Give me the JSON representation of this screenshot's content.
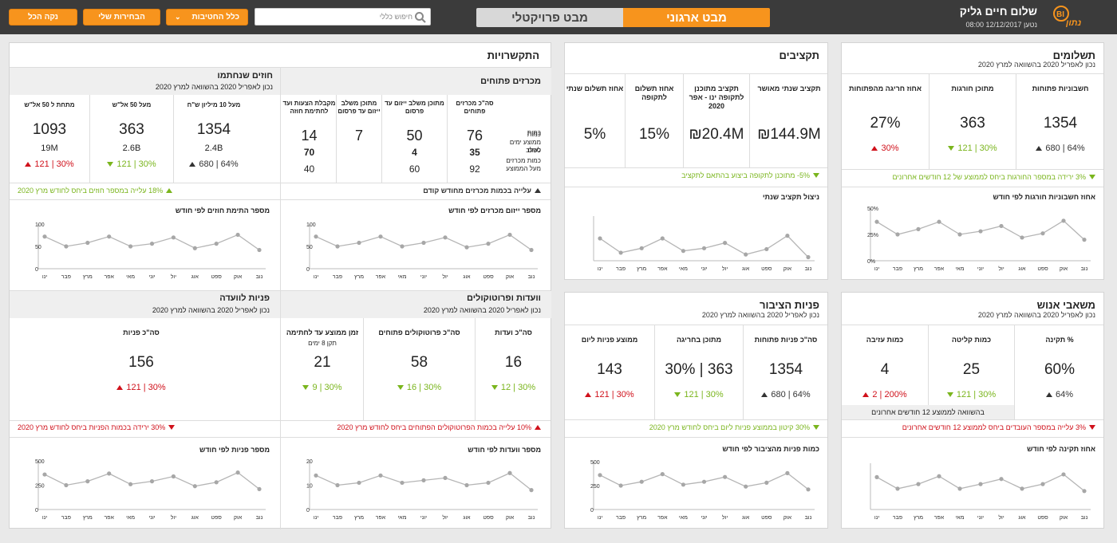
{
  "header": {
    "clear_all": "נקה הכל",
    "my_selections": "הבחירות שלי",
    "all_branches": "כלל החטיבות",
    "search_placeholder": "חיפוש כללי",
    "tab_project": "מבט פרויקטלי",
    "tab_org": "מבט ארגוני",
    "greeting": "שלום חיים גליק",
    "updated": "נטען 12/12/2017 08:00",
    "logo_text": "BI נתון"
  },
  "colors": {
    "accent": "#f7941d",
    "green": "#7ab51d",
    "red": "#d0111b",
    "topbar": "#3b3b3b"
  },
  "month_labels": [
    "ינו",
    "פבר",
    "מרץ",
    "אפר",
    "מאי",
    "יוני",
    "יול",
    "אוג",
    "ספט",
    "אוק",
    "נוב"
  ],
  "payments": {
    "title": "תשלומים",
    "subtitle": "נכון לאפריל 2020 בהשוואה למרץ 2020",
    "kpis": [
      {
        "label": "חשבוניות פתוחות",
        "value": "1354",
        "trend": "680 | 64%",
        "dir": "up",
        "color": "grey"
      },
      {
        "label": "מתוכן חורגות",
        "value": "363",
        "trend": "121 | 30%",
        "dir": "down",
        "color": "green"
      },
      {
        "label": "אחוז חריגה מהפתוחות",
        "value": "27%",
        "trend": "30%",
        "dir": "up",
        "color": "red"
      }
    ],
    "alert": "3% ירידה במספר החורגות ביחס לממוצע של 12 חודשים אחרונים",
    "chart_title": "אחוז חשבוניות חורגות לפי חודש",
    "yticks": [
      "50%",
      "25%",
      "0%"
    ]
  },
  "budgets": {
    "title": "תקציבים",
    "kpis": [
      {
        "label": "תקציב שנתי מאושר",
        "value": "₪144.9M"
      },
      {
        "label": "תקציב מתוכנן לתקופה ינו - אפר 2020",
        "value": "₪20.4M"
      },
      {
        "label": "אחוז תשלום לתקופה",
        "value": "15%"
      },
      {
        "label": "אחוז תשלום שנתי",
        "value": "5%"
      }
    ],
    "alert": "5%- מתוכנן לתקופה ביצוע בהתאם לתקציב",
    "chart_title": "ניצול תקציב שנתי"
  },
  "links": {
    "title": "התקשרויות",
    "tenders": {
      "title": "מכרזים פתוחים",
      "cols": [
        "סה\"כ מכרזים פתוחים",
        "מתוכן משלב ייזום עד פרסום",
        "מתוכן משלב ייזום עד פרסום",
        "מקבלת הצעות ועד לחתימת חוזה"
      ],
      "rowlabels": [
        "כמות",
        "ממוצע ימים לשלב",
        "כמות מכרזים מעל הממוצע"
      ],
      "rows": [
        [
          "76",
          "50",
          "7",
          "14"
        ],
        [
          "35",
          "4",
          "",
          "70"
        ],
        [
          "92",
          "60",
          "",
          "40"
        ]
      ],
      "alert": "עלייה בכמות מכרזים מחודש קודם",
      "chart_title": "מספר ייזום מכרזים לפי חודש",
      "yticks": [
        "100",
        "50",
        "0"
      ]
    },
    "contracts": {
      "title": "חוזים שנחתמו",
      "subtitle": "נכון לאפריל 2020 בהשוואה למרץ 2020",
      "rowlabels": [
        "כמות",
        "סכום"
      ],
      "cols": [
        {
          "label": "מעל 10 מיליון ש\"ח",
          "count": "1354",
          "sum": "2.4B",
          "trend": "680 | 64%",
          "dir": "up",
          "color": "grey"
        },
        {
          "label": "מעל 50 אל\"ש",
          "count": "363",
          "sum": "2.6B",
          "trend": "121 | 30%",
          "dir": "down",
          "color": "green"
        },
        {
          "label": "מתחת ל 50 אל\"ש",
          "count": "1093",
          "sum": "19M",
          "trend": "121 | 30%",
          "dir": "up",
          "color": "red"
        }
      ],
      "alert": "18% עלייה במספר חוזים ביחס לחודש מרץ 2020",
      "chart_title": "מספר התימת חוזים לפי חודש",
      "yticks": [
        "100",
        "50",
        "0"
      ]
    }
  },
  "hr": {
    "title": "משאבי אנוש",
    "subtitle": "נכון לאפריל 2020 בהשוואה למרץ 2020",
    "kpis": [
      {
        "label": "% תקינה",
        "value": "60%",
        "trend": "64%",
        "dir": "up",
        "color": "grey"
      },
      {
        "label": "כמות קליטה",
        "value": "25",
        "trend": "121 | 30%",
        "dir": "down",
        "color": "green"
      },
      {
        "label": "כמות עזיבה",
        "value": "4",
        "trend": "2 | 200%",
        "dir": "up",
        "color": "red"
      }
    ],
    "compare_note": "בהשוואה לממוצע 12 חודשים אחרונים",
    "alert": "3% עלייה במספר העובדים ביחס לממוצע 12 חודשים אחרונים",
    "chart_title": "אחוז תקינה לפי חודש"
  },
  "public": {
    "title": "פניות הציבור",
    "subtitle": "נכון לאפריל 2020 בהשוואה למרץ 2020",
    "kpis": [
      {
        "label": "סה\"כ פניות פתוחות",
        "value": "1354",
        "trend": "680 | 64%",
        "dir": "up",
        "color": "grey"
      },
      {
        "label": "מתוכן בחריגה",
        "value": "363 | 30%",
        "trend": "121 | 30%",
        "dir": "down",
        "color": "green"
      },
      {
        "label": "ממוצע פניות ליום",
        "value": "143",
        "trend": "121 | 30%",
        "dir": "up",
        "color": "red"
      }
    ],
    "alert": "30% קיטון בממוצע פניות ליום ביחס לחודש מרץ 2020",
    "chart_title": "כמות פניות מהציבור לפי חודש",
    "yticks": [
      "500",
      "250",
      "0"
    ]
  },
  "committees": {
    "title": "וועדות ופרוטוקולים",
    "subtitle": "נכון לאפריל 2020 בהשוואה למרץ 2020",
    "kpis": [
      {
        "label": "סה\"כ ועדות",
        "sub": "",
        "value": "16",
        "trend": "12 | 30%",
        "dir": "down",
        "color": "green"
      },
      {
        "label": "סה\"כ פרוטוקולים פתוחים",
        "sub": "",
        "value": "58",
        "trend": "16 | 30%",
        "dir": "down",
        "color": "green"
      },
      {
        "label": "זמן ממוצע עד לחתימה",
        "sub": "תקן 8 ימים",
        "value": "21",
        "trend": "9 | 30%",
        "dir": "down",
        "color": "green"
      }
    ],
    "alert": "10% עלייה בכמות הפרוטוקולים הפתוחים ביחס לחודש מרץ 2020",
    "chart_title": "מספר וועדות לפי חודש",
    "yticks": [
      "20",
      "10",
      "0"
    ]
  },
  "board": {
    "title": "פניות לוועדה",
    "subtitle": "נכון לאפריל 2020 בהשוואה למרץ 2020",
    "kpi": {
      "label": "סה\"כ פניות",
      "value": "156",
      "trend": "121 | 30%",
      "dir": "up",
      "color": "red"
    },
    "alert": "30% ירידה בכמות הפניות ביחס לחודש מרץ 2020",
    "chart_title": "מספר פניות לפי חודש",
    "yticks": [
      "500",
      "250",
      "0"
    ]
  },
  "chart_data": [
    {
      "type": "line",
      "title": "אחוז חשבוניות חורגות לפי חודש",
      "categories": [
        "ינו",
        "פבר",
        "מרץ",
        "אפר",
        "מאי",
        "יוני",
        "יול",
        "אוג",
        "ספט",
        "אוק",
        "נוב"
      ],
      "values": [
        37,
        25,
        30,
        37,
        25,
        28,
        33,
        22,
        26,
        38,
        20
      ],
      "ylim": [
        0,
        50
      ]
    },
    {
      "type": "line",
      "title": "ניצול תקציב שנתי",
      "categories": [
        "ינו",
        "פבר",
        "מרץ",
        "אפר",
        "מאי",
        "יוני",
        "יול",
        "אוג",
        "ספט",
        "אוק",
        "נוב"
      ],
      "values": [
        50,
        18,
        28,
        50,
        22,
        28,
        40,
        14,
        26,
        56,
        8
      ],
      "ylim": [
        0,
        100
      ]
    },
    {
      "type": "line",
      "title": "מספר ייזום מכרזים לפי חודש",
      "categories": [
        "ינו",
        "פבר",
        "מרץ",
        "אפר",
        "מאי",
        "יוני",
        "יול",
        "אוג",
        "ספט",
        "אוק",
        "נוב"
      ],
      "values": [
        72,
        50,
        58,
        72,
        50,
        58,
        70,
        48,
        56,
        76,
        42
      ],
      "ylim": [
        0,
        100
      ]
    },
    {
      "type": "line",
      "title": "מספר התימת חוזים לפי חודש",
      "categories": [
        "ינו",
        "פבר",
        "מרץ",
        "אפר",
        "מאי",
        "יוני",
        "יול",
        "אוג",
        "ספט",
        "אוק",
        "נוב"
      ],
      "values": [
        72,
        50,
        58,
        72,
        50,
        56,
        70,
        46,
        56,
        76,
        42
      ],
      "ylim": [
        0,
        100
      ]
    },
    {
      "type": "line",
      "title": "אחוז תקינה לפי חודש",
      "categories": [
        "ינו",
        "פבר",
        "מרץ",
        "אפר",
        "מאי",
        "יוני",
        "יול",
        "אוג",
        "ספט",
        "אוק",
        "נוב"
      ],
      "values": [
        70,
        45,
        55,
        72,
        45,
        55,
        66,
        45,
        55,
        76,
        40
      ],
      "ylim": [
        0,
        100
      ]
    },
    {
      "type": "line",
      "title": "כמות פניות מהציבור לפי חודש",
      "categories": [
        "ינו",
        "פבר",
        "מרץ",
        "אפר",
        "מאי",
        "יוני",
        "יול",
        "אוג",
        "ספט",
        "אוק",
        "נוב"
      ],
      "values": [
        360,
        250,
        290,
        370,
        260,
        290,
        340,
        240,
        280,
        380,
        210
      ],
      "ylim": [
        0,
        500
      ]
    },
    {
      "type": "line",
      "title": "מספר וועדות לפי חודש",
      "categories": [
        "ינו",
        "פבר",
        "מרץ",
        "אפר",
        "מאי",
        "יוני",
        "יול",
        "אוג",
        "ספט",
        "אוק",
        "נוב"
      ],
      "values": [
        14,
        10,
        11,
        14,
        11,
        12,
        13,
        10,
        11,
        15,
        8
      ],
      "ylim": [
        0,
        20
      ]
    },
    {
      "type": "line",
      "title": "מספר פניות לפי חודש",
      "categories": [
        "ינו",
        "פבר",
        "מרץ",
        "אפר",
        "מאי",
        "יוני",
        "יול",
        "אוג",
        "ספט",
        "אוק",
        "נוב"
      ],
      "values": [
        360,
        250,
        290,
        370,
        260,
        290,
        340,
        240,
        280,
        380,
        210
      ],
      "ylim": [
        0,
        500
      ]
    }
  ]
}
